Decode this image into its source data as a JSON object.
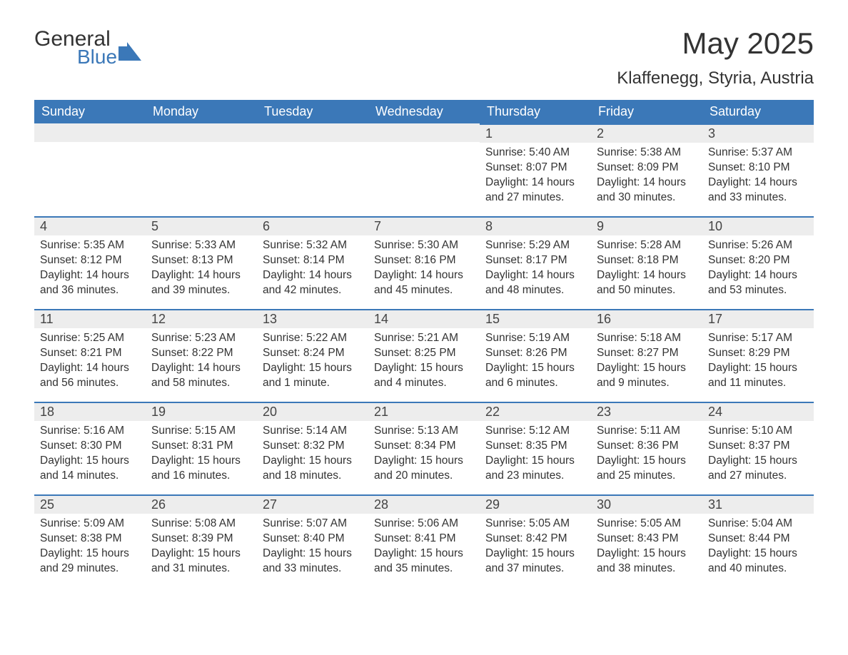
{
  "logo": {
    "general": "General",
    "blue": "Blue",
    "icon_color": "#3b78b8"
  },
  "title": "May 2025",
  "location": "Klaffenegg, Styria, Austria",
  "header_bg": "#3b78b8",
  "header_fg": "#ffffff",
  "daynum_bg": "#ededed",
  "daynum_border": "#3b78b8",
  "weekdays": [
    "Sunday",
    "Monday",
    "Tuesday",
    "Wednesday",
    "Thursday",
    "Friday",
    "Saturday"
  ],
  "weeks": [
    [
      null,
      null,
      null,
      null,
      {
        "n": "1",
        "sunrise": "Sunrise: 5:40 AM",
        "sunset": "Sunset: 8:07 PM",
        "daylight": "Daylight: 14 hours and 27 minutes."
      },
      {
        "n": "2",
        "sunrise": "Sunrise: 5:38 AM",
        "sunset": "Sunset: 8:09 PM",
        "daylight": "Daylight: 14 hours and 30 minutes."
      },
      {
        "n": "3",
        "sunrise": "Sunrise: 5:37 AM",
        "sunset": "Sunset: 8:10 PM",
        "daylight": "Daylight: 14 hours and 33 minutes."
      }
    ],
    [
      {
        "n": "4",
        "sunrise": "Sunrise: 5:35 AM",
        "sunset": "Sunset: 8:12 PM",
        "daylight": "Daylight: 14 hours and 36 minutes."
      },
      {
        "n": "5",
        "sunrise": "Sunrise: 5:33 AM",
        "sunset": "Sunset: 8:13 PM",
        "daylight": "Daylight: 14 hours and 39 minutes."
      },
      {
        "n": "6",
        "sunrise": "Sunrise: 5:32 AM",
        "sunset": "Sunset: 8:14 PM",
        "daylight": "Daylight: 14 hours and 42 minutes."
      },
      {
        "n": "7",
        "sunrise": "Sunrise: 5:30 AM",
        "sunset": "Sunset: 8:16 PM",
        "daylight": "Daylight: 14 hours and 45 minutes."
      },
      {
        "n": "8",
        "sunrise": "Sunrise: 5:29 AM",
        "sunset": "Sunset: 8:17 PM",
        "daylight": "Daylight: 14 hours and 48 minutes."
      },
      {
        "n": "9",
        "sunrise": "Sunrise: 5:28 AM",
        "sunset": "Sunset: 8:18 PM",
        "daylight": "Daylight: 14 hours and 50 minutes."
      },
      {
        "n": "10",
        "sunrise": "Sunrise: 5:26 AM",
        "sunset": "Sunset: 8:20 PM",
        "daylight": "Daylight: 14 hours and 53 minutes."
      }
    ],
    [
      {
        "n": "11",
        "sunrise": "Sunrise: 5:25 AM",
        "sunset": "Sunset: 8:21 PM",
        "daylight": "Daylight: 14 hours and 56 minutes."
      },
      {
        "n": "12",
        "sunrise": "Sunrise: 5:23 AM",
        "sunset": "Sunset: 8:22 PM",
        "daylight": "Daylight: 14 hours and 58 minutes."
      },
      {
        "n": "13",
        "sunrise": "Sunrise: 5:22 AM",
        "sunset": "Sunset: 8:24 PM",
        "daylight": "Daylight: 15 hours and 1 minute."
      },
      {
        "n": "14",
        "sunrise": "Sunrise: 5:21 AM",
        "sunset": "Sunset: 8:25 PM",
        "daylight": "Daylight: 15 hours and 4 minutes."
      },
      {
        "n": "15",
        "sunrise": "Sunrise: 5:19 AM",
        "sunset": "Sunset: 8:26 PM",
        "daylight": "Daylight: 15 hours and 6 minutes."
      },
      {
        "n": "16",
        "sunrise": "Sunrise: 5:18 AM",
        "sunset": "Sunset: 8:27 PM",
        "daylight": "Daylight: 15 hours and 9 minutes."
      },
      {
        "n": "17",
        "sunrise": "Sunrise: 5:17 AM",
        "sunset": "Sunset: 8:29 PM",
        "daylight": "Daylight: 15 hours and 11 minutes."
      }
    ],
    [
      {
        "n": "18",
        "sunrise": "Sunrise: 5:16 AM",
        "sunset": "Sunset: 8:30 PM",
        "daylight": "Daylight: 15 hours and 14 minutes."
      },
      {
        "n": "19",
        "sunrise": "Sunrise: 5:15 AM",
        "sunset": "Sunset: 8:31 PM",
        "daylight": "Daylight: 15 hours and 16 minutes."
      },
      {
        "n": "20",
        "sunrise": "Sunrise: 5:14 AM",
        "sunset": "Sunset: 8:32 PM",
        "daylight": "Daylight: 15 hours and 18 minutes."
      },
      {
        "n": "21",
        "sunrise": "Sunrise: 5:13 AM",
        "sunset": "Sunset: 8:34 PM",
        "daylight": "Daylight: 15 hours and 20 minutes."
      },
      {
        "n": "22",
        "sunrise": "Sunrise: 5:12 AM",
        "sunset": "Sunset: 8:35 PM",
        "daylight": "Daylight: 15 hours and 23 minutes."
      },
      {
        "n": "23",
        "sunrise": "Sunrise: 5:11 AM",
        "sunset": "Sunset: 8:36 PM",
        "daylight": "Daylight: 15 hours and 25 minutes."
      },
      {
        "n": "24",
        "sunrise": "Sunrise: 5:10 AM",
        "sunset": "Sunset: 8:37 PM",
        "daylight": "Daylight: 15 hours and 27 minutes."
      }
    ],
    [
      {
        "n": "25",
        "sunrise": "Sunrise: 5:09 AM",
        "sunset": "Sunset: 8:38 PM",
        "daylight": "Daylight: 15 hours and 29 minutes."
      },
      {
        "n": "26",
        "sunrise": "Sunrise: 5:08 AM",
        "sunset": "Sunset: 8:39 PM",
        "daylight": "Daylight: 15 hours and 31 minutes."
      },
      {
        "n": "27",
        "sunrise": "Sunrise: 5:07 AM",
        "sunset": "Sunset: 8:40 PM",
        "daylight": "Daylight: 15 hours and 33 minutes."
      },
      {
        "n": "28",
        "sunrise": "Sunrise: 5:06 AM",
        "sunset": "Sunset: 8:41 PM",
        "daylight": "Daylight: 15 hours and 35 minutes."
      },
      {
        "n": "29",
        "sunrise": "Sunrise: 5:05 AM",
        "sunset": "Sunset: 8:42 PM",
        "daylight": "Daylight: 15 hours and 37 minutes."
      },
      {
        "n": "30",
        "sunrise": "Sunrise: 5:05 AM",
        "sunset": "Sunset: 8:43 PM",
        "daylight": "Daylight: 15 hours and 38 minutes."
      },
      {
        "n": "31",
        "sunrise": "Sunrise: 5:04 AM",
        "sunset": "Sunset: 8:44 PM",
        "daylight": "Daylight: 15 hours and 40 minutes."
      }
    ]
  ]
}
